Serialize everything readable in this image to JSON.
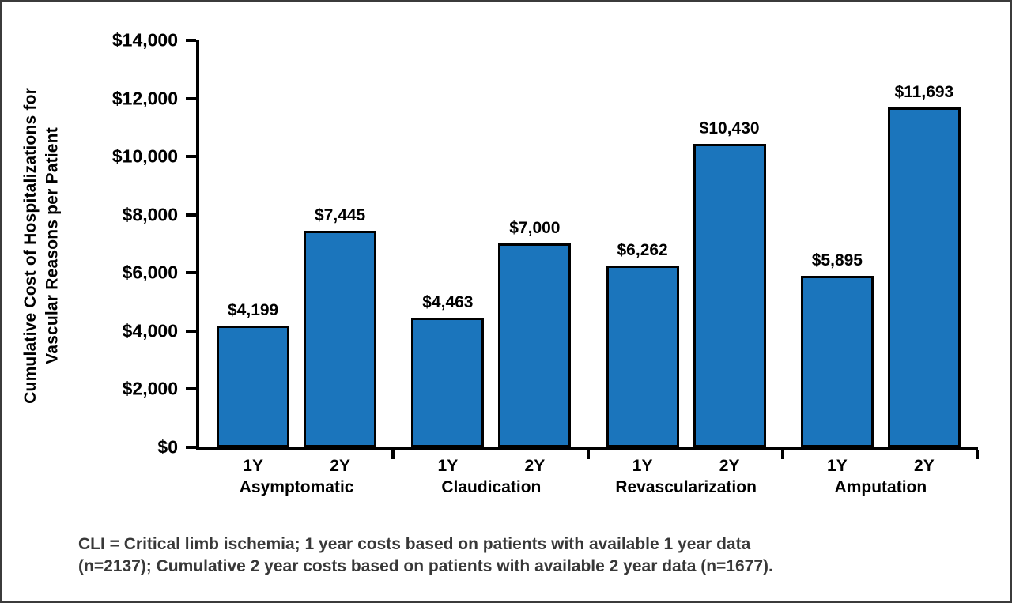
{
  "chart_data": {
    "type": "bar",
    "title": "",
    "ylabel_lines": [
      "Cumulative Cost of Hospitalizations for",
      "Vascular Reasons per Patient"
    ],
    "ylim": [
      0,
      14000
    ],
    "ytick_interval": 2000,
    "yticks": [
      "$14,000",
      "$12,000",
      "$10,000",
      "$8,000",
      "$6,000",
      "$4,000",
      "$2,000",
      "$0"
    ],
    "grid": false,
    "legend": false,
    "value_prefix": "$",
    "bar_color": "#1b75bc",
    "bar_border": "#000000",
    "groups": [
      {
        "label": "Asymptomatic",
        "bars": [
          {
            "x": "1Y",
            "value": 4199,
            "label": "$4,199"
          },
          {
            "x": "2Y",
            "value": 7445,
            "label": "$7,445"
          }
        ]
      },
      {
        "label": "Claudication",
        "bars": [
          {
            "x": "1Y",
            "value": 4463,
            "label": "$4,463"
          },
          {
            "x": "2Y",
            "value": 7000,
            "label": "$7,000"
          }
        ]
      },
      {
        "label": "Revascularization",
        "bars": [
          {
            "x": "1Y",
            "value": 6262,
            "label": "$6,262"
          },
          {
            "x": "2Y",
            "value": 10430,
            "label": "$10,430"
          }
        ]
      },
      {
        "label": "Amputation",
        "bars": [
          {
            "x": "1Y",
            "value": 5895,
            "label": "$5,895"
          },
          {
            "x": "2Y",
            "value": 11693,
            "label": "$11,693"
          }
        ]
      }
    ]
  },
  "footnote": {
    "line1": "CLI = Critical limb ischemia; 1 year costs based on patients with available 1 year data",
    "line2": "(n=2137); Cumulative 2 year costs based on patients with available 2 year data (n=1677)."
  }
}
